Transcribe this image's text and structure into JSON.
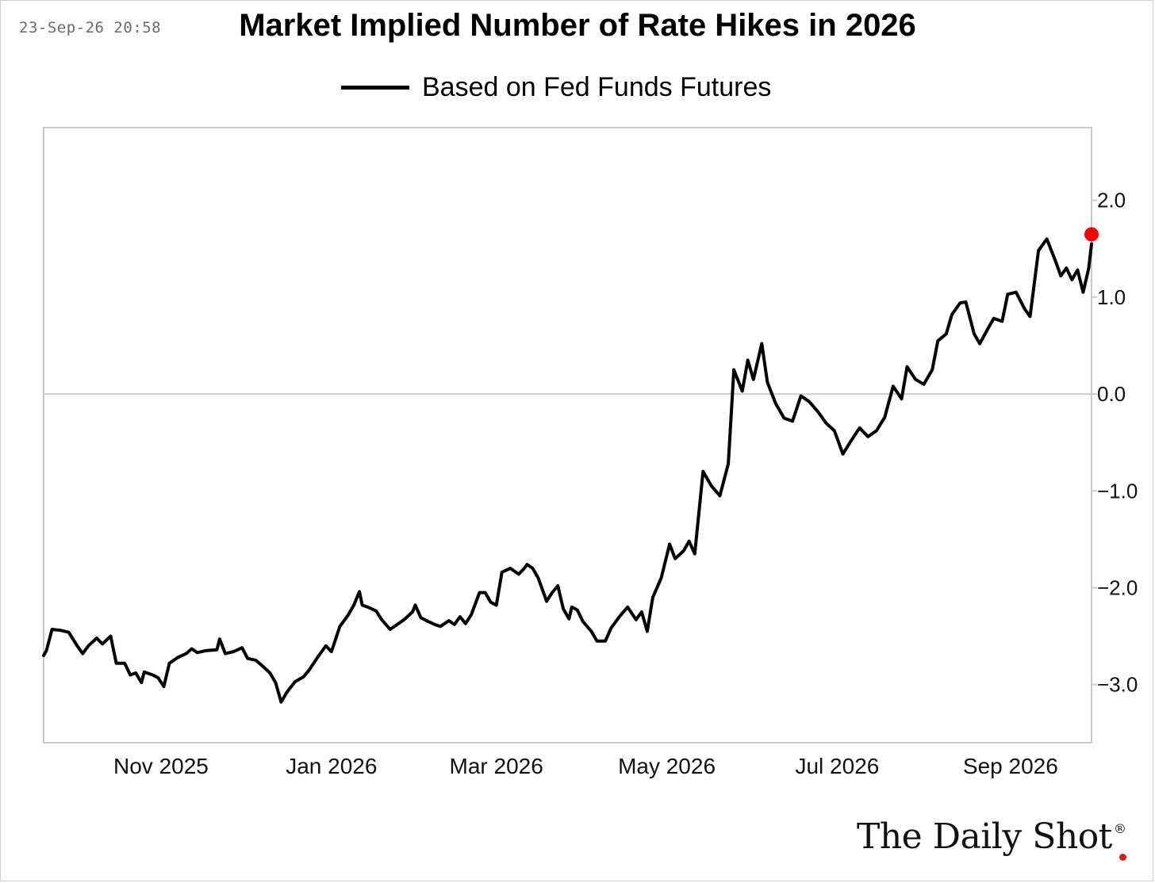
{
  "header": {
    "timestamp": "23-Sep-26 20:58",
    "title": "Market Implied Number of Rate Hikes in 2026"
  },
  "brand": {
    "name": "The Daily Shot",
    "mark": "®",
    "accent_color": "#e31a1a"
  },
  "colors": {
    "line": "#000000",
    "axis": "#cccccc",
    "zero_line": "#cccccc",
    "last_point": "#ff0000"
  },
  "chart_data": {
    "type": "line",
    "title": "Market Implied Number of Rate Hikes in 2026",
    "xlabel": "",
    "ylabel": "",
    "ylim": [
      -3.6,
      2.75
    ],
    "y_axis_side": "right",
    "y_ticks": [
      -3.0,
      -2.0,
      -1.0,
      0.0,
      1.0,
      2.0
    ],
    "y_tick_labels": [
      "−3.0",
      "−2.0",
      "−1.0",
      "0.0",
      "1.0",
      "2.0"
    ],
    "x_range": [
      "2025-09-20",
      "2026-09-30"
    ],
    "x_ticks": [
      "2025-11-01",
      "2026-01-01",
      "2026-03-01",
      "2026-05-01",
      "2026-07-01",
      "2026-09-01"
    ],
    "x_tick_labels": [
      "Nov 2025",
      "Jan 2026",
      "Mar 2026",
      "May 2026",
      "Jul 2026",
      "Sep 2026"
    ],
    "grid": false,
    "zero_line": true,
    "legend": "top-center",
    "series": [
      {
        "name": "Based on Fed Funds Futures",
        "points": [
          [
            "2025-09-20",
            -2.7
          ],
          [
            "2025-09-21",
            -2.65
          ],
          [
            "2025-09-23",
            -2.43
          ],
          [
            "2025-09-26",
            -2.44
          ],
          [
            "2025-09-29",
            -2.46
          ],
          [
            "2025-10-02",
            -2.6
          ],
          [
            "2025-10-04",
            -2.68
          ],
          [
            "2025-10-06",
            -2.6
          ],
          [
            "2025-10-09",
            -2.52
          ],
          [
            "2025-10-11",
            -2.58
          ],
          [
            "2025-10-14",
            -2.5
          ],
          [
            "2025-10-16",
            -2.78
          ],
          [
            "2025-10-19",
            -2.78
          ],
          [
            "2025-10-21",
            -2.9
          ],
          [
            "2025-10-23",
            -2.88
          ],
          [
            "2025-10-25",
            -2.98
          ],
          [
            "2025-10-26",
            -2.87
          ],
          [
            "2025-10-29",
            -2.9
          ],
          [
            "2025-10-31",
            -2.93
          ],
          [
            "2025-11-02",
            -3.02
          ],
          [
            "2025-11-04",
            -2.78
          ],
          [
            "2025-11-07",
            -2.72
          ],
          [
            "2025-11-10",
            -2.68
          ],
          [
            "2025-11-12",
            -2.63
          ],
          [
            "2025-11-14",
            -2.67
          ],
          [
            "2025-11-17",
            -2.65
          ],
          [
            "2025-11-21",
            -2.64
          ],
          [
            "2025-11-22",
            -2.53
          ],
          [
            "2025-11-24",
            -2.68
          ],
          [
            "2025-11-27",
            -2.66
          ],
          [
            "2025-11-30",
            -2.62
          ],
          [
            "2025-12-02",
            -2.73
          ],
          [
            "2025-12-05",
            -2.75
          ],
          [
            "2025-12-07",
            -2.8
          ],
          [
            "2025-12-10",
            -2.88
          ],
          [
            "2025-12-12",
            -2.98
          ],
          [
            "2025-12-14",
            -3.18
          ],
          [
            "2025-12-16",
            -3.08
          ],
          [
            "2025-12-19",
            -2.97
          ],
          [
            "2025-12-22",
            -2.92
          ],
          [
            "2025-12-24",
            -2.85
          ],
          [
            "2025-12-27",
            -2.72
          ],
          [
            "2025-12-30",
            -2.6
          ],
          [
            "2026-01-01",
            -2.66
          ],
          [
            "2026-01-04",
            -2.4
          ],
          [
            "2026-01-07",
            -2.28
          ],
          [
            "2026-01-09",
            -2.18
          ],
          [
            "2026-01-11",
            -2.04
          ],
          [
            "2026-01-12",
            -2.18
          ],
          [
            "2026-01-14",
            -2.2
          ],
          [
            "2026-01-17",
            -2.24
          ],
          [
            "2026-01-19",
            -2.33
          ],
          [
            "2026-01-22",
            -2.43
          ],
          [
            "2026-01-25",
            -2.37
          ],
          [
            "2026-01-27",
            -2.33
          ],
          [
            "2026-01-30",
            -2.25
          ],
          [
            "2026-01-31",
            -2.18
          ],
          [
            "2026-02-02",
            -2.31
          ],
          [
            "2026-02-04",
            -2.34
          ],
          [
            "2026-02-07",
            -2.38
          ],
          [
            "2026-02-09",
            -2.4
          ],
          [
            "2026-02-12",
            -2.34
          ],
          [
            "2026-02-14",
            -2.38
          ],
          [
            "2026-02-16",
            -2.3
          ],
          [
            "2026-02-18",
            -2.37
          ],
          [
            "2026-02-20",
            -2.28
          ],
          [
            "2026-02-23",
            -2.05
          ],
          [
            "2026-02-25",
            -2.05
          ],
          [
            "2026-02-27",
            -2.15
          ],
          [
            "2026-03-01",
            -2.18
          ],
          [
            "2026-03-03",
            -1.84
          ],
          [
            "2026-03-06",
            -1.8
          ],
          [
            "2026-03-09",
            -1.86
          ],
          [
            "2026-03-11",
            -1.8
          ],
          [
            "2026-03-12",
            -1.76
          ],
          [
            "2026-03-14",
            -1.8
          ],
          [
            "2026-03-16",
            -1.9
          ],
          [
            "2026-03-19",
            -2.14
          ],
          [
            "2026-03-21",
            -2.05
          ],
          [
            "2026-03-23",
            -1.98
          ],
          [
            "2026-03-25",
            -2.22
          ],
          [
            "2026-03-27",
            -2.32
          ],
          [
            "2026-03-28",
            -2.2
          ],
          [
            "2026-03-30",
            -2.23
          ],
          [
            "2026-04-01",
            -2.35
          ],
          [
            "2026-04-04",
            -2.45
          ],
          [
            "2026-04-06",
            -2.55
          ],
          [
            "2026-04-09",
            -2.55
          ],
          [
            "2026-04-11",
            -2.42
          ],
          [
            "2026-04-14",
            -2.3
          ],
          [
            "2026-04-17",
            -2.2
          ],
          [
            "2026-04-20",
            -2.33
          ],
          [
            "2026-04-22",
            -2.25
          ],
          [
            "2026-04-24",
            -2.45
          ],
          [
            "2026-04-26",
            -2.1
          ],
          [
            "2026-04-29",
            -1.9
          ],
          [
            "2026-05-02",
            -1.55
          ],
          [
            "2026-05-04",
            -1.7
          ],
          [
            "2026-05-07",
            -1.62
          ],
          [
            "2026-05-09",
            -1.52
          ],
          [
            "2026-05-11",
            -1.65
          ],
          [
            "2026-05-14",
            -0.8
          ],
          [
            "2026-05-17",
            -0.95
          ],
          [
            "2026-05-20",
            -1.05
          ],
          [
            "2026-05-23",
            -0.72
          ],
          [
            "2026-05-25",
            0.25
          ],
          [
            "2026-05-28",
            0.03
          ],
          [
            "2026-05-30",
            0.35
          ],
          [
            "2026-06-01",
            0.15
          ],
          [
            "2026-06-04",
            0.52
          ],
          [
            "2026-06-06",
            0.12
          ],
          [
            "2026-06-09",
            -0.1
          ],
          [
            "2026-06-12",
            -0.25
          ],
          [
            "2026-06-15",
            -0.28
          ],
          [
            "2026-06-18",
            -0.02
          ],
          [
            "2026-06-21",
            -0.08
          ],
          [
            "2026-06-24",
            -0.18
          ],
          [
            "2026-06-27",
            -0.3
          ],
          [
            "2026-06-30",
            -0.38
          ],
          [
            "2026-07-03",
            -0.62
          ],
          [
            "2026-07-06",
            -0.48
          ],
          [
            "2026-07-09",
            -0.35
          ],
          [
            "2026-07-12",
            -0.44
          ],
          [
            "2026-07-15",
            -0.38
          ],
          [
            "2026-07-18",
            -0.24
          ],
          [
            "2026-07-21",
            0.08
          ],
          [
            "2026-07-24",
            -0.05
          ],
          [
            "2026-07-26",
            0.28
          ],
          [
            "2026-07-29",
            0.15
          ],
          [
            "2026-08-01",
            0.1
          ],
          [
            "2026-08-04",
            0.25
          ],
          [
            "2026-08-06",
            0.55
          ],
          [
            "2026-08-09",
            0.62
          ],
          [
            "2026-08-11",
            0.82
          ],
          [
            "2026-08-14",
            0.94
          ],
          [
            "2026-08-16",
            0.95
          ],
          [
            "2026-08-19",
            0.62
          ],
          [
            "2026-08-21",
            0.52
          ],
          [
            "2026-08-24",
            0.68
          ],
          [
            "2026-08-26",
            0.78
          ],
          [
            "2026-08-29",
            0.75
          ],
          [
            "2026-08-31",
            1.03
          ],
          [
            "2026-09-03",
            1.05
          ],
          [
            "2026-09-06",
            0.88
          ],
          [
            "2026-09-08",
            0.8
          ],
          [
            "2026-09-11",
            1.48
          ],
          [
            "2026-09-14",
            1.6
          ],
          [
            "2026-09-17",
            1.38
          ],
          [
            "2026-09-19",
            1.22
          ],
          [
            "2026-09-21",
            1.3
          ],
          [
            "2026-09-23",
            1.18
          ],
          [
            "2026-09-25",
            1.28
          ],
          [
            "2026-09-27",
            1.05
          ],
          [
            "2026-09-29",
            1.3
          ],
          [
            "2026-09-30",
            1.55
          ]
        ]
      }
    ],
    "last_point_marker": true
  }
}
